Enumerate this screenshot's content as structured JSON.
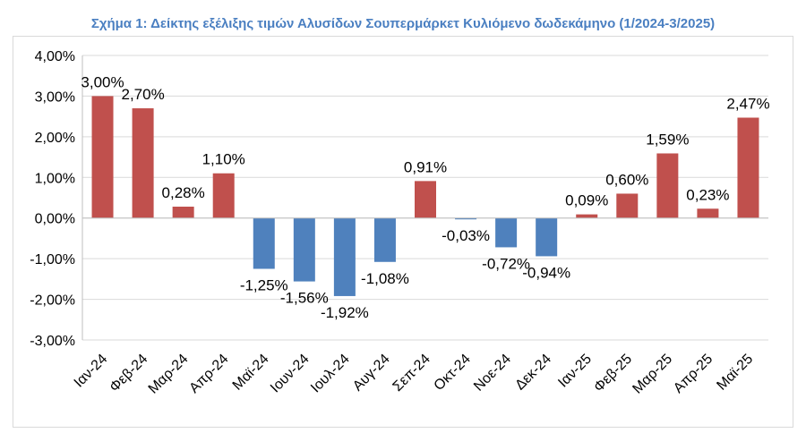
{
  "chart_data": {
    "type": "bar",
    "title": "Σχήμα 1: Δείκτης εξέλιξης τιμών Αλυσίδων Σουπερμάρκετ Κυλιόμενο δωδεκάμηνο (1/2024-3/2025)",
    "xlabel": "",
    "ylabel": "",
    "categories": [
      "Ιαν-24",
      "Φεβ-24",
      "Μαρ-24",
      "Απρ-24",
      "Μαϊ-24",
      "Ιουν-24",
      "Ιουλ-24",
      "Αυγ-24",
      "Σεπ-24",
      "Οκτ-24",
      "Νοε-24",
      "Δεκ-24",
      "Ιαν-25",
      "Φεβ-25",
      "Μαρ-25",
      "Απρ-25",
      "Μαϊ-25"
    ],
    "values": [
      3.0,
      2.7,
      0.28,
      1.1,
      -1.25,
      -1.56,
      -1.92,
      -1.08,
      0.91,
      -0.03,
      -0.72,
      -0.94,
      0.09,
      0.6,
      1.59,
      0.23,
      2.47
    ],
    "data_labels": [
      "3,00%",
      "2,70%",
      "0,28%",
      "1,10%",
      "-1,25%",
      "-1,56%",
      "-1,92%",
      "-1,08%",
      "0,91%",
      "-0,03%",
      "-0,72%",
      "-0,94%",
      "0,09%",
      "0,60%",
      "1,59%",
      "0,23%",
      "2,47%"
    ],
    "ylim": [
      -3,
      4
    ],
    "yticks": [
      4,
      3,
      2,
      1,
      0,
      -1,
      -2,
      -3
    ],
    "ytick_labels": [
      "4,00%",
      "3,00%",
      "2,00%",
      "1,00%",
      "0,00%",
      "-1,00%",
      "-2,00%",
      "-3,00%"
    ],
    "grid": true,
    "colors": {
      "positive": "#c0504d",
      "negative": "#4f81bd",
      "gridline": "#d9d9d9",
      "title": "#4a7fc1"
    }
  }
}
